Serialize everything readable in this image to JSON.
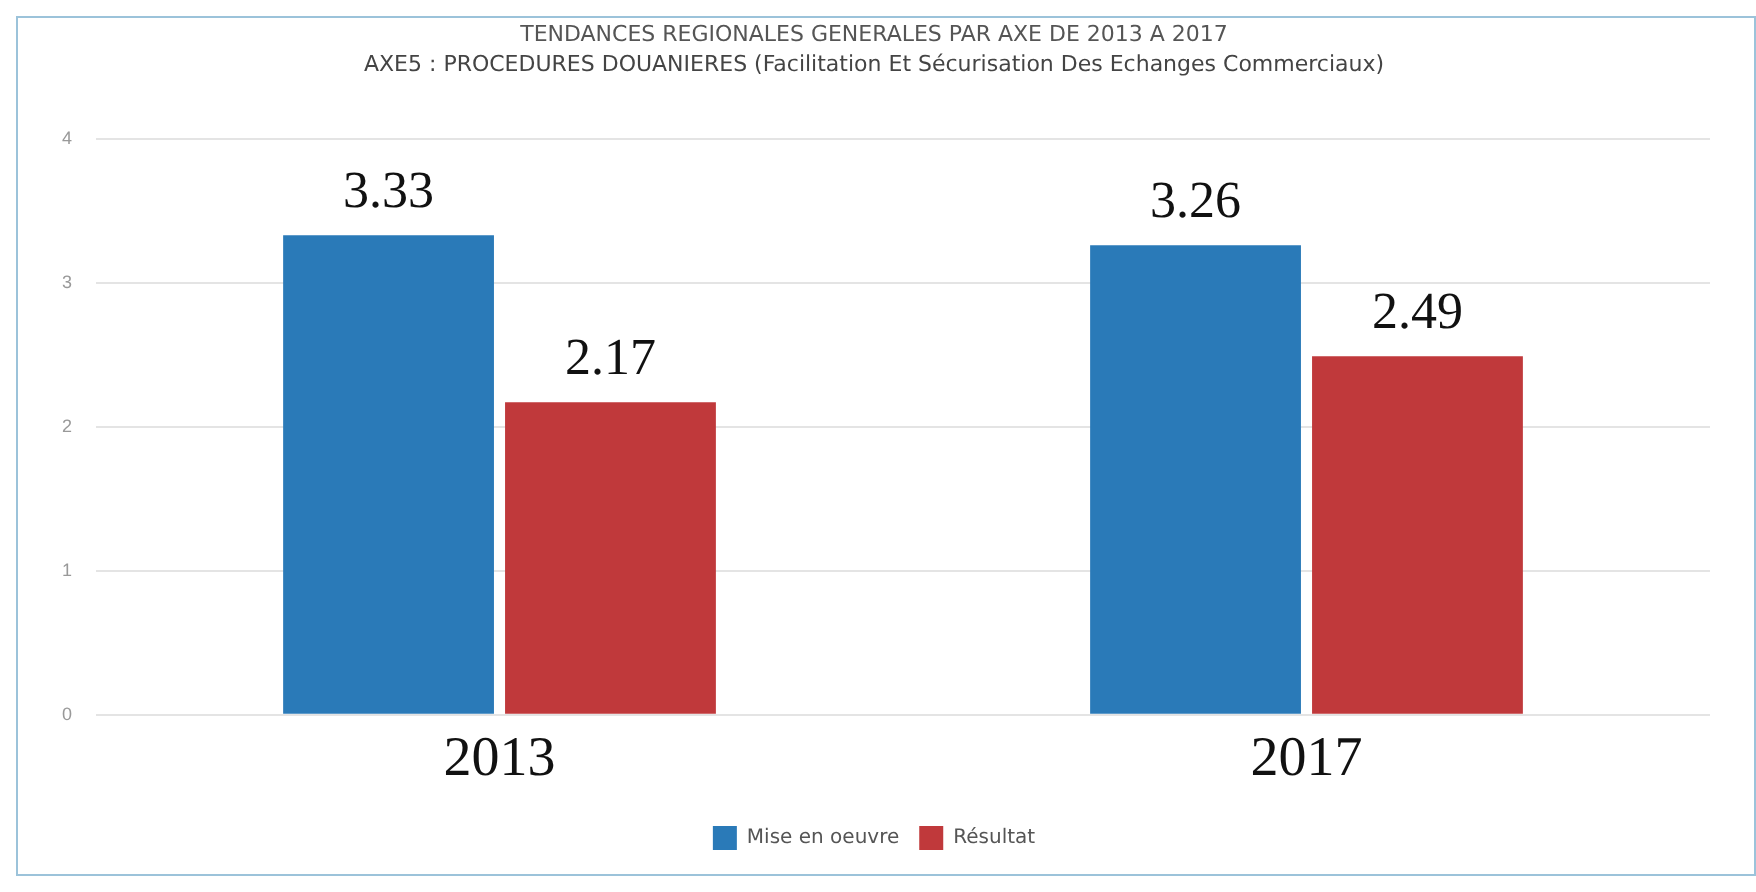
{
  "chart_data": {
    "type": "bar",
    "title": "TENDANCES REGIONALES GENERALES PAR AXE DE 2013 A 2017",
    "subtitle": "AXE5 : PROCEDURES DOUANIERES (Facilitation Et Sécurisation Des Echanges Commerciaux)",
    "categories": [
      "2013",
      "2017"
    ],
    "series": [
      {
        "name": "Mise en oeuvre",
        "color": "#2a7ab8",
        "values": [
          3.33,
          3.26
        ]
      },
      {
        "name": "Résultat",
        "color": "#c0393b",
        "values": [
          2.17,
          2.49
        ]
      }
    ],
    "ylim": [
      0,
      4
    ],
    "yticks": [
      0,
      1,
      2,
      3,
      4
    ],
    "grid": "y",
    "legend": "bottom",
    "data_labels": true
  }
}
